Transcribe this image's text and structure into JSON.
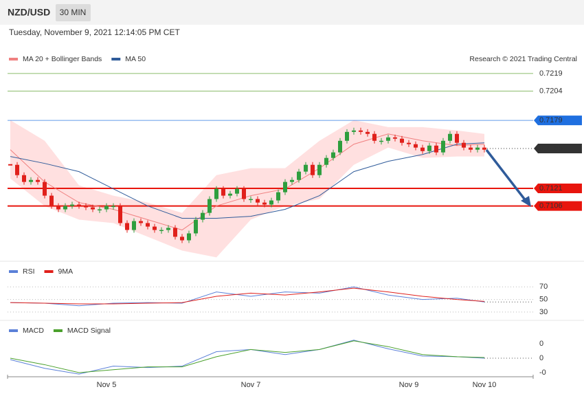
{
  "header": {
    "symbol": "NZD/USD",
    "timeframe": "30 MIN",
    "timestamp": "Tuesday, November 9, 2021 12:14:05 PM CET",
    "credit": "Research © 2021 Trading Central"
  },
  "chart_data": [
    {
      "type": "candlestick",
      "categories": [
        null,
        null,
        null,
        null,
        null,
        null,
        null,
        null,
        null,
        null,
        null,
        null,
        null,
        null,
        "Nov 5",
        null,
        null,
        null,
        null,
        null,
        null,
        null,
        null,
        null,
        null,
        null,
        null,
        null,
        null,
        null,
        null,
        null,
        null,
        null,
        null,
        "Nov 7",
        null,
        null,
        null,
        null,
        null,
        null,
        null,
        null,
        null,
        null,
        null,
        null,
        null,
        null,
        null,
        null,
        null,
        null,
        null,
        null,
        null,
        null,
        "Nov 9",
        null,
        null,
        null,
        null,
        null,
        null,
        null,
        null,
        null,
        null,
        "Nov 10"
      ],
      "values": [
        0.71411,
        0.71323,
        0.71265,
        0.71282,
        0.71265,
        0.71148,
        0.7106,
        0.71031,
        0.7106,
        0.71072,
        0.7106,
        0.71048,
        0.71031,
        0.71031,
        0.7106,
        0.7106,
        0.70914,
        0.70855,
        0.70931,
        0.70914,
        0.70884,
        0.70855,
        0.70855,
        0.70873,
        0.70797,
        0.70767,
        0.70826,
        0.70943,
        0.71001,
        0.71119,
        0.71206,
        0.71148,
        0.71165,
        0.71206,
        0.71119,
        0.71119,
        0.71089,
        0.71072,
        0.71107,
        0.71177,
        0.71265,
        0.71282,
        0.71353,
        0.71411,
        0.71323,
        0.71411,
        0.7147,
        0.71517,
        0.71616,
        0.71692,
        0.71704,
        0.71692,
        0.71675,
        0.71616,
        0.71616,
        0.71645,
        0.71634,
        0.71599,
        0.71587,
        0.71558,
        0.71528,
        0.71575,
        0.71517,
        0.71616,
        0.71675,
        0.71599,
        0.71558,
        0.7154,
        0.71558,
        0.7154
      ],
      "up_color": "#2e9e3e",
      "down_color": "#e0201b",
      "x": [
        0,
        5,
        10,
        15,
        20,
        25,
        30,
        35,
        40,
        45,
        50,
        55,
        60,
        65,
        69
      ],
      "series": [
        {
          "name": "MA 20 + Bollinger Bands",
          "color": "#f08080",
          "values": [
            0.7154,
            0.71265,
            0.71089,
            0.71031,
            0.70943,
            0.70855,
            0.7106,
            0.71148,
            0.71206,
            0.71382,
            0.71587,
            0.71675,
            0.71616,
            0.71575,
            0.71587
          ]
        },
        {
          "name": "MA 50",
          "color": "#2f5b9a",
          "values": [
            0.71482,
            0.71423,
            0.71353,
            0.71206,
            0.7106,
            0.70955,
            0.70955,
            0.70972,
            0.71031,
            0.71148,
            0.71353,
            0.71441,
            0.71499,
            0.71587,
            0.71599
          ]
        }
      ],
      "bands": {
        "color": "#ffd6d6",
        "upper": [
          0.71792,
          0.71616,
          0.71236,
          0.71148,
          0.71089,
          0.71001,
          0.71323,
          0.71382,
          0.71382,
          0.71616,
          0.71792,
          0.71733,
          0.71733,
          0.71704,
          0.71675
        ],
        "lower": [
          0.71294,
          0.7106,
          0.70943,
          0.70914,
          0.70797,
          0.70679,
          0.70621,
          0.70943,
          0.7106,
          0.71119,
          0.71411,
          0.71558,
          0.7147,
          0.71482,
          0.71482
        ]
      },
      "levels": [
        {
          "value": 0.7219,
          "color": "#5aa02c",
          "line": "solid",
          "box": false
        },
        {
          "value": 0.7204,
          "color": "#5aa02c",
          "line": "solid",
          "box": false
        },
        {
          "value": 0.7179,
          "color": "#1f6fe0",
          "line": "solid",
          "box": true
        },
        {
          "value": 0.7155,
          "color": "#333333",
          "line": "dotted",
          "box": true
        },
        {
          "value": 0.7121,
          "color": "#e8150d",
          "line": "thick",
          "box": true
        },
        {
          "value": 0.7106,
          "color": "#e8150d",
          "line": "thick",
          "box": true
        }
      ],
      "ylim": [
        0.706,
        0.7226
      ]
    },
    {
      "type": "line",
      "x": [
        0,
        5,
        10,
        15,
        20,
        25,
        30,
        35,
        40,
        45,
        50,
        55,
        60,
        65,
        69
      ],
      "series": [
        {
          "name": "RSI",
          "color": "#5b80d8",
          "values": [
            45,
            44,
            40,
            44,
            45,
            44,
            62,
            55,
            62,
            60,
            70,
            57,
            50,
            52,
            46
          ]
        },
        {
          "name": "9MA",
          "color": "#e0201b",
          "values": [
            45,
            44,
            43,
            43,
            44,
            45,
            55,
            60,
            57,
            62,
            68,
            62,
            55,
            50,
            47
          ]
        }
      ],
      "ylim": [
        20,
        90
      ],
      "yticks": [
        30,
        50,
        70
      ],
      "grid": true
    },
    {
      "type": "line",
      "x": [
        0,
        5,
        10,
        15,
        20,
        25,
        30,
        35,
        40,
        45,
        50,
        55,
        60,
        65,
        69
      ],
      "series": [
        {
          "name": "MACD",
          "color": "#5b80d8",
          "values": [
            -0.0002,
            -0.0014,
            -0.0022,
            -0.0011,
            -0.0013,
            -0.0011,
            0.0009,
            0.0012,
            0.0005,
            0.0012,
            0.0025,
            0.0013,
            0.0003,
            0.0002,
            0
          ]
        },
        {
          "name": "MACD Signal",
          "color": "#4aa02c",
          "values": [
            0,
            -0.0009,
            -0.002,
            -0.0016,
            -0.0012,
            -0.0012,
            0.0002,
            0.0012,
            0.0008,
            0.0012,
            0.0024,
            0.0016,
            0.0005,
            0.0002,
            0.0001
          ]
        }
      ],
      "ylim": [
        -0.003,
        0.003
      ],
      "yticks": [
        {
          "value": 0.002,
          "label": "0"
        },
        0,
        {
          "value": -0.002,
          "label": "-0"
        }
      ],
      "grid": false
    }
  ]
}
